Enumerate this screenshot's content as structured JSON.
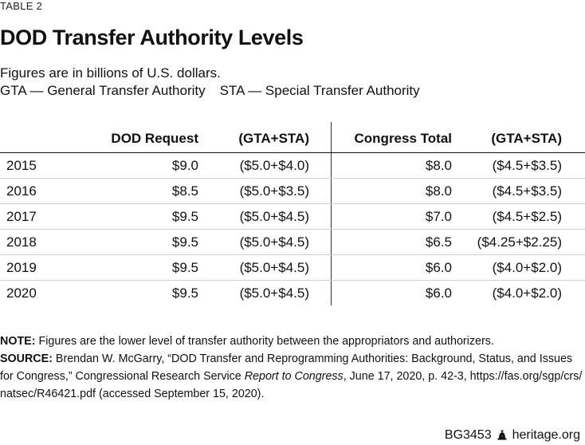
{
  "header": {
    "table_label": "TABLE 2",
    "title": "DOD Transfer Authority Levels",
    "subtitle1": "Figures are in billions of U.S. dollars.",
    "subtitle2a": "GTA — General Transfer Authority",
    "subtitle2b": "STA — Special Transfer Authority"
  },
  "table": {
    "columns": [
      "",
      "DOD Request",
      "(GTA+STA)",
      "Congress Total",
      "(GTA+STA)"
    ],
    "rows": [
      [
        "2015",
        "$9.0",
        "($5.0+$4.0)",
        "$8.0",
        "($4.5+$3.5)"
      ],
      [
        "2016",
        "$8.5",
        "($5.0+$3.5)",
        "$8.0",
        "($4.5+$3.5)"
      ],
      [
        "2017",
        "$9.5",
        "($5.0+$4.5)",
        "$7.0",
        "($4.5+$2.5)"
      ],
      [
        "2018",
        "$9.5",
        "($5.0+$4.5)",
        "$6.5",
        "($4.25+$2.25)"
      ],
      [
        "2019",
        "$9.5",
        "($5.0+$4.5)",
        "$6.0",
        "($4.0+$2.0)"
      ],
      [
        "2020",
        "$9.5",
        "($5.0+$4.5)",
        "$6.0",
        "($4.0+$2.0)"
      ]
    ]
  },
  "notes": {
    "note_label": "NOTE:",
    "note_text": " Figures are the lower level of transfer authority between the appropriators and authorizers.",
    "source_label": "SOURCE:",
    "source_line1": " Brendan W. McGarry, “DOD Transfer and Reprogramming Authorities: Background, Status, and Issues",
    "source_line2a": "for Congress,” Congressional Research Service ",
    "source_line2_italic": "Report to Congress",
    "source_line2b": ", June 17, 2020, p. 42-3, https://fas.org/sgp/crs/",
    "source_line3": "natsec/R46421.pdf (accessed September 15, 2020)."
  },
  "footer": {
    "code": "BG3453",
    "site": "heritage.org",
    "icon": "liberty-bell-icon"
  }
}
